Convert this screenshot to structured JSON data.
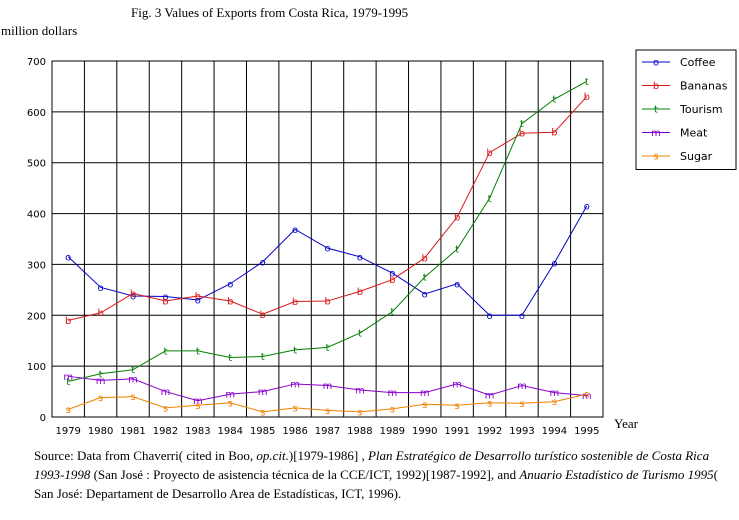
{
  "chart_data": {
    "type": "line",
    "title": "Fig. 3  Values of Exports from Costa Rica, 1979-1995",
    "ylabel": "million dollars",
    "xlabel": "Year",
    "ylim": [
      0,
      700
    ],
    "yticks": [
      0,
      100,
      200,
      300,
      400,
      500,
      600,
      700
    ],
    "grid": true,
    "legend_position": "top-right",
    "categories": [
      "1979",
      "1980",
      "1981",
      "1982",
      "1983",
      "1984",
      "1985",
      "1986",
      "1987",
      "1988",
      "1989",
      "1990",
      "1991",
      "1992",
      "1993",
      "1994",
      "1995"
    ],
    "series": [
      {
        "name": "Coffee",
        "color": "#0000c8",
        "marker": "o",
        "values": [
          315,
          255,
          238,
          237,
          230,
          262,
          305,
          369,
          332,
          315,
          283,
          242,
          262,
          200,
          200,
          303,
          415
        ]
      },
      {
        "name": "Bananas",
        "color": "#d81818",
        "marker": "b",
        "values": [
          190,
          205,
          243,
          228,
          238,
          228,
          202,
          227,
          228,
          247,
          270,
          313,
          393,
          520,
          558,
          560,
          630
        ]
      },
      {
        "name": "Tourism",
        "color": "#008000",
        "marker": "t",
        "values": [
          70,
          85,
          93,
          130,
          130,
          117,
          119,
          132,
          137,
          165,
          207,
          275,
          330,
          430,
          577,
          625,
          660
        ]
      },
      {
        "name": "Meat",
        "color": "#8800cc",
        "marker": "m",
        "values": [
          80,
          72,
          75,
          50,
          32,
          45,
          50,
          65,
          62,
          53,
          48,
          48,
          65,
          43,
          62,
          48,
          42
        ]
      },
      {
        "name": "Sugar",
        "color": "#f08000",
        "marker": "s",
        "values": [
          15,
          38,
          40,
          18,
          23,
          28,
          10,
          18,
          13,
          10,
          16,
          25,
          23,
          28,
          27,
          30,
          45
        ]
      }
    ]
  },
  "source": {
    "prefix": "Source: Data from Chaverri( cited in Boo, ",
    "opcit": "op.cit.",
    "part2": ")[1979-1986] ,",
    "title1": "Plan Estratégico de Desarrollo turístico sostenible de Costa Rica 1993-1998",
    "part3": "(San José : Proyecto de asistencia técnica de la CCE/ICT, 1992)[1987-1992], and ",
    "title2": "Anuario Estadístico de Turismo 1995",
    "part4": "( San José: Departament de Desarrollo Area de Estadísticas, ICT, 1996)."
  }
}
